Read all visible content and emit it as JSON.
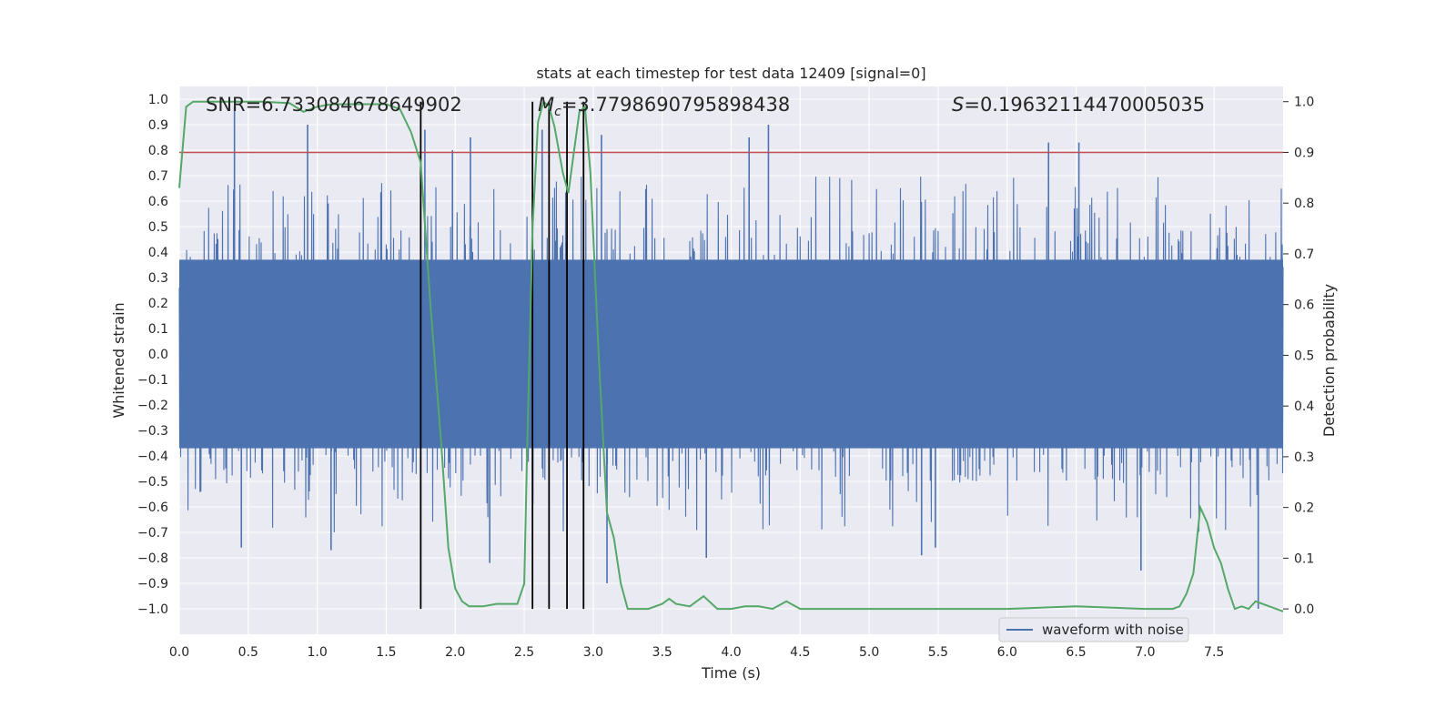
{
  "chart_data": {
    "type": "line",
    "title": "stats at each timestep for test data 12409 [signal=0]",
    "xlabel": "Time (s)",
    "ylabel_left": "Whitened strain",
    "ylabel_right": "Detection probability",
    "xlim": [
      0.0,
      8.0
    ],
    "ylim_left": [
      -1.1,
      1.05
    ],
    "ylim_right": [
      -0.05,
      1.03
    ],
    "x_ticks": [
      0.0,
      0.5,
      1.0,
      1.5,
      2.0,
      2.5,
      3.0,
      3.5,
      4.0,
      4.5,
      5.0,
      5.5,
      6.0,
      6.5,
      7.0,
      7.5
    ],
    "x_tick_labels": [
      "0.0",
      "0.5",
      "1.0",
      "1.5",
      "2.0",
      "2.5",
      "3.0",
      "3.5",
      "4.0",
      "4.5",
      "5.0",
      "5.5",
      "6.0",
      "6.5",
      "7.0",
      "7.5"
    ],
    "y_left_ticks": [
      1.0,
      0.9,
      0.8,
      0.7,
      0.6,
      0.5,
      0.4,
      0.3,
      0.2,
      0.1,
      0.0,
      -0.1,
      -0.2,
      -0.3,
      -0.4,
      -0.5,
      -0.6,
      -0.7,
      -0.8,
      -0.9,
      -1.0
    ],
    "y_left_tick_labels": [
      "1.0",
      "0.9",
      "0.8",
      "0.7",
      "0.6",
      "0.5",
      "0.4",
      "0.3",
      "0.2",
      "0.1",
      "0.0",
      "−0.1",
      "−0.2",
      "−0.3",
      "−0.4",
      "−0.5",
      "−0.6",
      "−0.7",
      "−0.8",
      "−0.9",
      "−1.0"
    ],
    "y_right_ticks": [
      1.0,
      0.9,
      0.8,
      0.7,
      0.6,
      0.5,
      0.4,
      0.3,
      0.2,
      0.1,
      0.0
    ],
    "y_right_tick_labels": [
      "1.0",
      "0.9",
      "0.8",
      "0.7",
      "0.6",
      "0.5",
      "0.4",
      "0.3",
      "0.2",
      "0.1",
      "0.0"
    ],
    "annotations": {
      "snr": "SNR=6.733084678649902",
      "mc_symbol": "M",
      "mc_sub": "c",
      "mc_value": "=3.7798690795898438",
      "s_symbol": "S",
      "s_value": "=0.19632114470005035"
    },
    "threshold": 0.9,
    "event_markers_x": [
      1.75,
      2.56,
      2.68,
      2.81,
      2.93
    ],
    "series": [
      {
        "name": "waveform with noise",
        "axis": "left",
        "color": "#4c72b0",
        "duration_s": 8.0,
        "core_amplitude": 0.37,
        "peaks": [
          [
            0.4,
            0.97
          ],
          [
            0.93,
            0.9
          ],
          [
            1.78,
            0.88
          ],
          [
            1.98,
            0.8
          ],
          [
            2.11,
            0.85
          ],
          [
            2.25,
            -0.82
          ],
          [
            2.63,
            0.88
          ],
          [
            3.06,
            0.86
          ],
          [
            3.1,
            -0.9
          ],
          [
            4.13,
            0.85
          ],
          [
            4.27,
            0.9
          ],
          [
            6.3,
            0.83
          ],
          [
            6.52,
            0.83
          ],
          [
            7.82,
            -1.0
          ],
          [
            6.97,
            -0.85
          ],
          [
            0.45,
            -0.76
          ],
          [
            1.1,
            -0.77
          ],
          [
            3.82,
            -0.8
          ],
          [
            5.38,
            -0.79
          ],
          [
            5.48,
            -0.76
          ]
        ]
      },
      {
        "name": "detection probability",
        "axis": "right",
        "color": "#55a868",
        "x": [
          0.0,
          0.05,
          0.1,
          0.2,
          0.4,
          0.6,
          0.8,
          0.9,
          0.95,
          1.0,
          1.1,
          1.3,
          1.5,
          1.6,
          1.68,
          1.75,
          1.82,
          1.9,
          1.95,
          2.0,
          2.05,
          2.1,
          2.2,
          2.3,
          2.45,
          2.5,
          2.52,
          2.56,
          2.6,
          2.64,
          2.68,
          2.72,
          2.78,
          2.82,
          2.86,
          2.9,
          2.94,
          2.98,
          3.04,
          3.1,
          3.15,
          3.2,
          3.25,
          3.3,
          3.4,
          3.5,
          3.55,
          3.6,
          3.7,
          3.8,
          3.9,
          4.0,
          4.1,
          4.2,
          4.3,
          4.4,
          4.5,
          4.6,
          5.0,
          5.5,
          6.0,
          6.5,
          7.0,
          7.2,
          7.25,
          7.3,
          7.35,
          7.4,
          7.45,
          7.5,
          7.55,
          7.6,
          7.65,
          7.7,
          7.75,
          7.8,
          7.85,
          7.9,
          8.0
        ],
        "y": [
          0.83,
          0.99,
          1.0,
          1.0,
          1.0,
          1.0,
          0.997,
          0.98,
          0.985,
          0.99,
          0.995,
          0.995,
          0.995,
          0.985,
          0.94,
          0.88,
          0.6,
          0.32,
          0.12,
          0.04,
          0.015,
          0.005,
          0.005,
          0.01,
          0.01,
          0.05,
          0.3,
          0.75,
          0.96,
          1.0,
          0.99,
          0.95,
          0.86,
          0.82,
          0.9,
          0.98,
          0.99,
          0.86,
          0.5,
          0.19,
          0.14,
          0.05,
          0.0,
          0.0,
          0.0,
          0.01,
          0.02,
          0.01,
          0.005,
          0.025,
          0.0,
          0.0,
          0.005,
          0.005,
          0.0,
          0.015,
          0.0,
          0.0,
          0.0,
          0.0,
          0.0,
          0.005,
          0.0,
          0.0,
          0.005,
          0.03,
          0.07,
          0.2,
          0.17,
          0.12,
          0.09,
          0.04,
          0.0,
          0.005,
          0.0,
          0.015,
          0.01,
          0.005,
          -0.005
        ]
      }
    ],
    "legend": {
      "position": "lower-right",
      "entries": [
        "waveform with noise"
      ]
    },
    "colors": {
      "background": "#eaeaf2",
      "grid": "#ffffff",
      "threshold": "#c44e52",
      "marker": "#000000",
      "text": "#262626"
    }
  }
}
